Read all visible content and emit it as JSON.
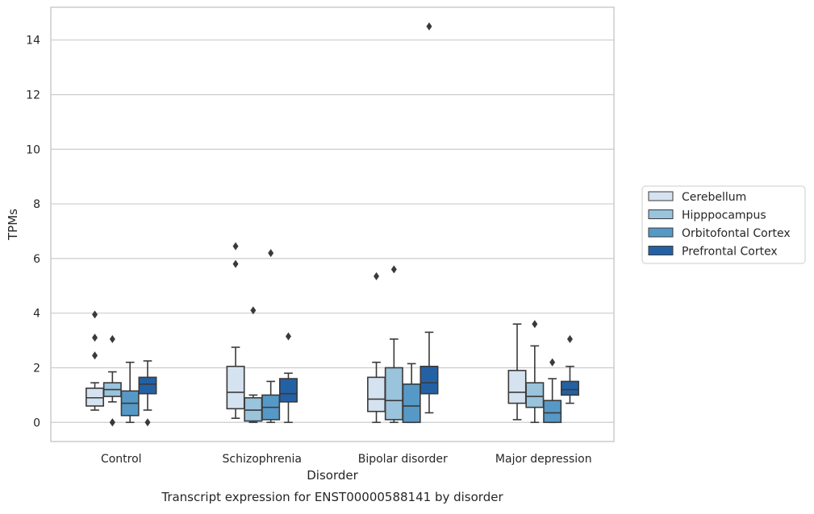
{
  "colors": {
    "Cerebellum": "#d5e3f0",
    "Hipppocampus": "#9ac3dc",
    "Orbitofontal Cortex": "#5699c6",
    "Prefrontal Cortex": "#2461a4",
    "grid": "#cccccc",
    "frame": "#cccccc",
    "box_edge": "#3a3a3a"
  },
  "caption": "Transcript expression for ENST00000588141 by disorder",
  "chart_data": {
    "type": "box",
    "xlabel": "Disorder",
    "ylabel": "TPMs",
    "ylim": [
      -0.7,
      15.2
    ],
    "yticks": [
      0,
      2,
      4,
      6,
      8,
      10,
      12,
      14
    ],
    "grid": "horizontal",
    "legend_position": "right",
    "categories": [
      "Control",
      "Schizophrenia",
      "Bipolar disorder",
      "Major depression"
    ],
    "series": [
      {
        "name": "Cerebellum",
        "boxes": [
          {
            "whislo": 0.45,
            "q1": 0.6,
            "med": 0.9,
            "q3": 1.25,
            "whishi": 1.45,
            "fliers": [
              2.45,
              3.1,
              3.95
            ]
          },
          {
            "whislo": 0.15,
            "q1": 0.5,
            "med": 1.1,
            "q3": 2.05,
            "whishi": 2.75,
            "fliers": [
              5.8,
              6.45
            ]
          },
          {
            "whislo": 0.0,
            "q1": 0.4,
            "med": 0.85,
            "q3": 1.65,
            "whishi": 2.2,
            "fliers": [
              5.35
            ]
          },
          {
            "whislo": 0.1,
            "q1": 0.7,
            "med": 1.1,
            "q3": 1.9,
            "whishi": 3.6,
            "fliers": []
          }
        ]
      },
      {
        "name": "Hipppocampus",
        "boxes": [
          {
            "whislo": 0.75,
            "q1": 0.95,
            "med": 1.2,
            "q3": 1.45,
            "whishi": 1.85,
            "fliers": [
              0.0,
              0.0,
              3.05
            ]
          },
          {
            "whislo": 0.0,
            "q1": 0.05,
            "med": 0.45,
            "q3": 0.9,
            "whishi": 1.0,
            "fliers": [
              4.1
            ]
          },
          {
            "whislo": 0.0,
            "q1": 0.1,
            "med": 0.8,
            "q3": 2.0,
            "whishi": 3.05,
            "fliers": [
              5.6
            ]
          },
          {
            "whislo": 0.0,
            "q1": 0.55,
            "med": 0.95,
            "q3": 1.45,
            "whishi": 2.8,
            "fliers": [
              3.6
            ]
          }
        ]
      },
      {
        "name": "Orbitofontal Cortex",
        "boxes": [
          {
            "whislo": 0.0,
            "q1": 0.25,
            "med": 0.7,
            "q3": 1.15,
            "whishi": 2.2,
            "fliers": []
          },
          {
            "whislo": 0.0,
            "q1": 0.1,
            "med": 0.55,
            "q3": 1.0,
            "whishi": 1.5,
            "fliers": [
              6.2
            ]
          },
          {
            "whislo": 0.0,
            "q1": 0.0,
            "med": 0.6,
            "q3": 1.4,
            "whishi": 2.15,
            "fliers": []
          },
          {
            "whislo": 0.0,
            "q1": 0.0,
            "med": 0.35,
            "q3": 0.8,
            "whishi": 1.6,
            "fliers": [
              2.2
            ]
          }
        ]
      },
      {
        "name": "Prefrontal Cortex",
        "boxes": [
          {
            "whislo": 0.45,
            "q1": 1.05,
            "med": 1.4,
            "q3": 1.65,
            "whishi": 2.25,
            "fliers": [
              0.0
            ]
          },
          {
            "whislo": 0.0,
            "q1": 0.75,
            "med": 1.05,
            "q3": 1.6,
            "whishi": 1.8,
            "fliers": [
              3.15
            ]
          },
          {
            "whislo": 0.35,
            "q1": 1.05,
            "med": 1.45,
            "q3": 2.05,
            "whishi": 3.3,
            "fliers": [
              14.5
            ]
          },
          {
            "whislo": 0.7,
            "q1": 1.0,
            "med": 1.2,
            "q3": 1.5,
            "whishi": 2.05,
            "fliers": [
              3.05
            ]
          }
        ]
      }
    ]
  }
}
